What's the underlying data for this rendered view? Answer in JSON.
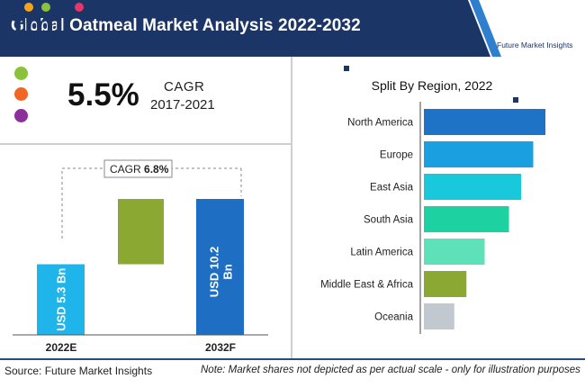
{
  "header": {
    "title": "Global Oatmeal Market Analysis 2022-2032",
    "logo_brand": "fmi",
    "logo_tagline": "Future Market Insights",
    "colors": {
      "band": "#1b3566",
      "accent": "#2f7fd0"
    }
  },
  "summary": {
    "cagr_value": "5.5%",
    "cagr_label": "CAGR",
    "cagr_period": "2017-2021",
    "dots": [
      {
        "icon": "green-dot",
        "color": "#8ac23e"
      },
      {
        "icon": "orange-dot",
        "color": "#f26522"
      },
      {
        "icon": "purple-dot",
        "color": "#8e2f9e"
      }
    ]
  },
  "footer": {
    "source": "Source: Future Market Insights",
    "note": "Note: Market  shares not depicted as per actual scale - only for illustration purposes"
  },
  "chart_data": [
    {
      "type": "bar",
      "chart": "waterfall",
      "categories": [
        "2022E",
        "2032F"
      ],
      "values": [
        5.3,
        10.2
      ],
      "bar_labels": [
        "USD 5.3 Bn",
        "USD 10.2 Bn"
      ],
      "growth_color": "#8aa832",
      "bar_colors": [
        "#1fb5ea",
        "#1e6fc4"
      ],
      "annotation_label": "CAGR ",
      "annotation_value": "6.8%"
    },
    {
      "type": "bar",
      "orientation": "horizontal",
      "title": "Split By Region, 2022",
      "categories": [
        "North America",
        "Europe",
        "East Asia",
        "South Asia",
        "Latin America",
        "Middle East & Africa",
        "Oceania"
      ],
      "values": [
        100,
        90,
        80,
        70,
        50,
        35,
        25
      ],
      "colors": [
        "#1f73c6",
        "#1aa0e0",
        "#19c8da",
        "#1dd1a1",
        "#5ee0b8",
        "#8aa832",
        "#c2c8d0"
      ]
    }
  ]
}
